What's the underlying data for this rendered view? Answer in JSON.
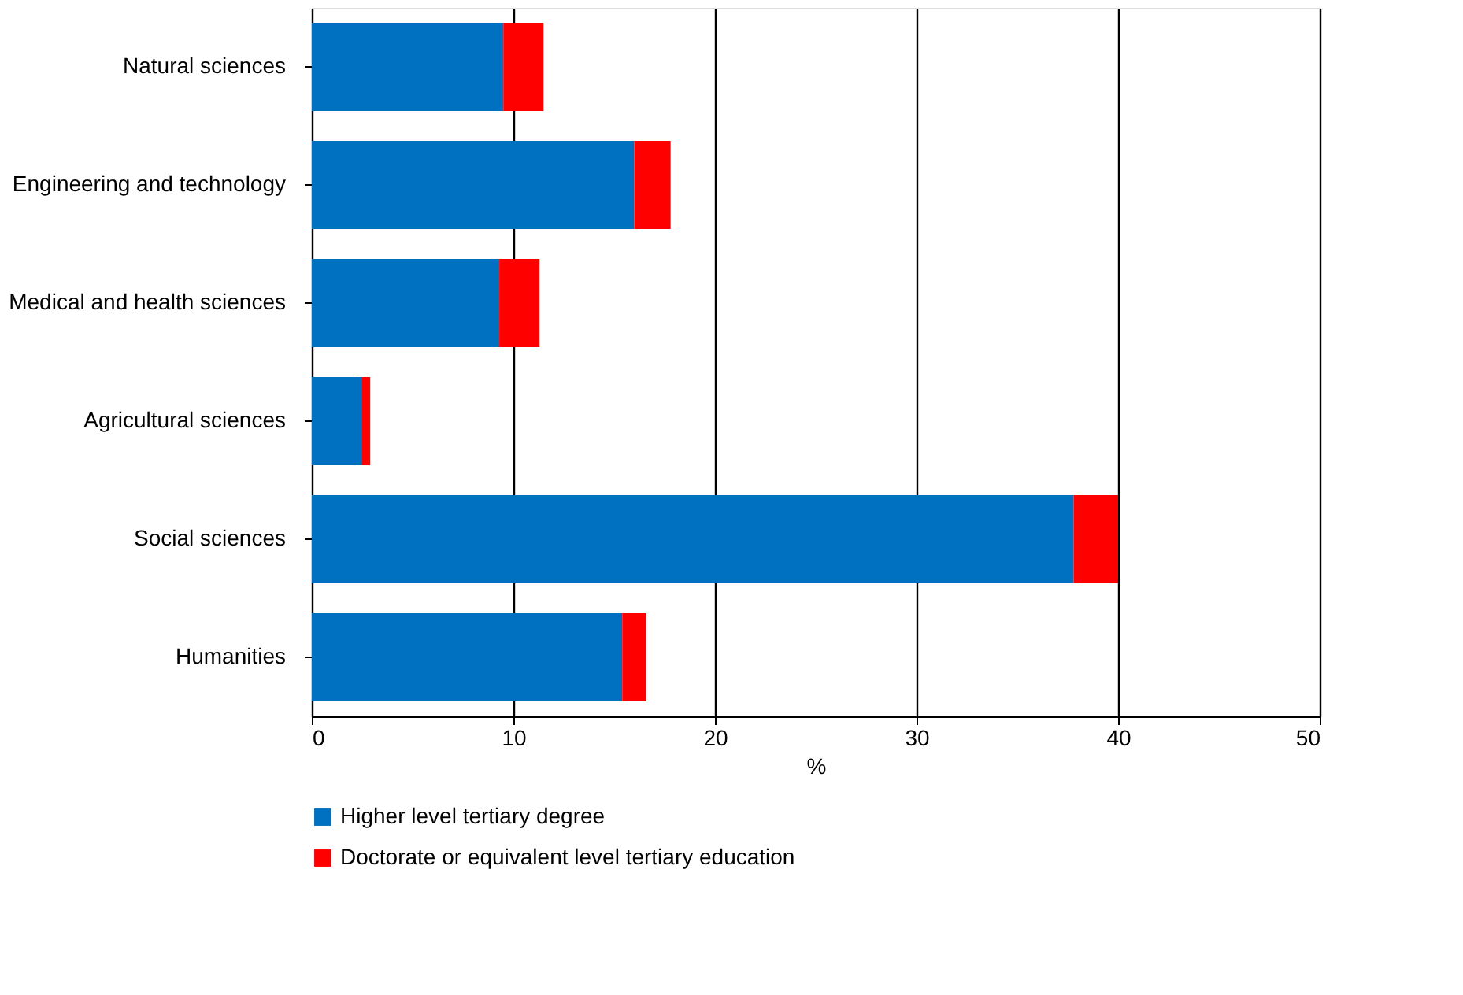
{
  "chart_data": {
    "type": "bar",
    "orientation": "horizontal",
    "stacked": true,
    "xlabel": "%",
    "categories": [
      "Natural sciences",
      "Engineering and technology",
      "Medical and health sciences",
      "Agricultural sciences",
      "Social sciences",
      "Humanities"
    ],
    "series": [
      {
        "name": "Higher level tertiary degree",
        "color": "#0070c0",
        "values": [
          9.5,
          16.0,
          9.3,
          2.5,
          37.8,
          15.4
        ]
      },
      {
        "name": "Doctorate or equivalent level  tertiary education",
        "color": "#ff0000",
        "values": [
          2.0,
          1.8,
          2.0,
          0.4,
          2.2,
          1.2
        ]
      }
    ],
    "xlim": [
      0,
      50
    ],
    "xticks": [
      0,
      10,
      20,
      30,
      40,
      50
    ],
    "grid": "x",
    "legend": "bottom"
  }
}
